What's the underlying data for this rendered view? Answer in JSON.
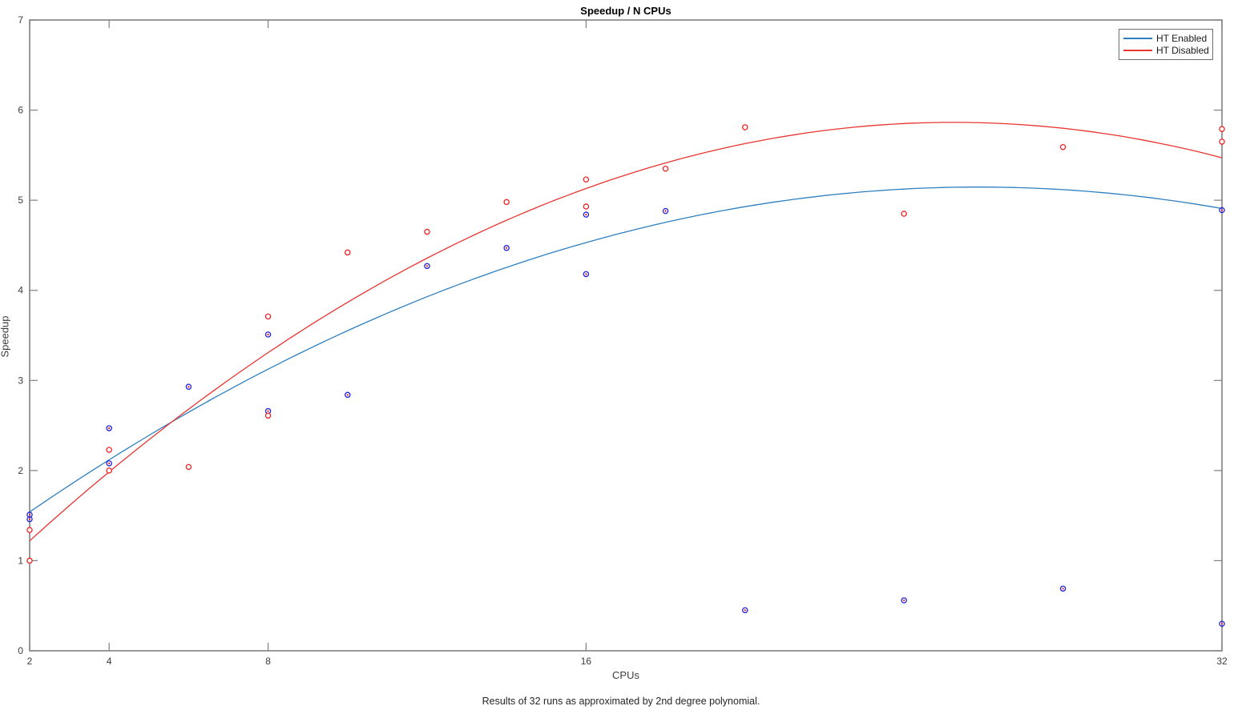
{
  "chart_data": {
    "type": "scatter",
    "title": "Speedup / N CPUs",
    "xlabel": "CPUs",
    "ylabel": "Speedup",
    "caption": "Results of 32 runs as approximated by 2nd degree polynomial.",
    "x_scale": "linear",
    "xlim": [
      2,
      32
    ],
    "ylim": [
      0,
      7
    ],
    "x_ticks": [
      2,
      4,
      8,
      16,
      32
    ],
    "y_ticks": [
      0,
      1,
      2,
      3,
      4,
      5,
      6,
      7
    ],
    "grid": false,
    "box": true,
    "ticks_direction": "in",
    "legend_position": "top-right",
    "axis_color": "#808080",
    "tick_label_color": "#3c3c3c",
    "series": [
      {
        "name": "HT Enabled",
        "line_color": "#2e7fc0",
        "marker": "circle-with-center-dot",
        "marker_edge_color": "#2222dd",
        "marker_center_color": "#dd2222",
        "fit_poly2": {
          "a": -0.00633,
          "b": 0.3275,
          "c": 0.9103
        },
        "points": [
          [
            2,
            1.51
          ],
          [
            2,
            1.46
          ],
          [
            4,
            2.47
          ],
          [
            4,
            2.08
          ],
          [
            6,
            2.93
          ],
          [
            8,
            3.51
          ],
          [
            8,
            2.66
          ],
          [
            10,
            2.84
          ],
          [
            12,
            4.27
          ],
          [
            14,
            4.47
          ],
          [
            16,
            4.84
          ],
          [
            16,
            4.18
          ],
          [
            18,
            4.88
          ],
          [
            20,
            0.45
          ],
          [
            24,
            0.56
          ],
          [
            28,
            0.69
          ],
          [
            32,
            4.89
          ],
          [
            32,
            0.3
          ]
        ]
      },
      {
        "name": "HT Disabled",
        "line_color": "#e83530",
        "marker": "circle-open",
        "marker_edge_color": "#ee2222",
        "fit_poly2": {
          "a": -0.0086,
          "b": 0.4341,
          "c": 0.3862
        },
        "points": [
          [
            2,
            1.34
          ],
          [
            2,
            1.0
          ],
          [
            4,
            2.23
          ],
          [
            4,
            2.0
          ],
          [
            6,
            2.04
          ],
          [
            8,
            3.71
          ],
          [
            8,
            2.61
          ],
          [
            10,
            4.42
          ],
          [
            12,
            4.65
          ],
          [
            14,
            4.98
          ],
          [
            16,
            5.23
          ],
          [
            16,
            4.93
          ],
          [
            18,
            5.35
          ],
          [
            20,
            5.81
          ],
          [
            24,
            4.85
          ],
          [
            28,
            5.59
          ],
          [
            32,
            5.79
          ],
          [
            32,
            5.65
          ]
        ]
      }
    ]
  }
}
